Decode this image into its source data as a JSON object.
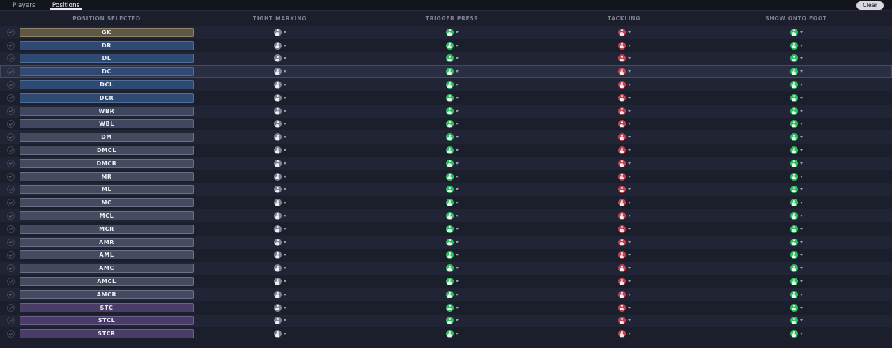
{
  "tabs": [
    {
      "label": "Players",
      "active": false
    },
    {
      "label": "Positions",
      "active": true
    }
  ],
  "clear_label": "Clear",
  "columns": [
    "POSITION SELECTED",
    "TIGHT MARKING",
    "TRIGGER PRESS",
    "TACKLING",
    "SHOW ONTO FOOT"
  ],
  "icons": {
    "row_checkbox": "check-circle",
    "tight_marking": "grey-figure-circle",
    "trigger_press": "green-figure-circle",
    "tackling": "red-figure-circle",
    "show_onto_foot": "green-figure-circle",
    "dropdown": "chevron-down"
  },
  "colors": {
    "page_bg": "#1c1f2b",
    "topbar_bg": "#13151e",
    "row_light": "#202435",
    "row_dark": "#1b1e2b",
    "row_selected": "#2a2e42",
    "gk_bg": "#5e5844",
    "gk_border": "#8d8666",
    "def_bg": "#2e4a72",
    "def_border": "#4f6f9c",
    "wb_bg": "#3f4660",
    "wb_border": "#646c8a",
    "mid_bg": "#454b5f",
    "mid_border": "#6a7188",
    "st_bg": "#493d67",
    "st_border": "#6f6094",
    "tight_marking_icon": "#7d8494",
    "trigger_press_icon": "#2fbd62",
    "tackling_icon": "#c3424f",
    "show_onto_foot_icon": "#2fbd62"
  },
  "rows": [
    {
      "position": "GK",
      "group": "gk",
      "selected": false
    },
    {
      "position": "DR",
      "group": "def",
      "selected": false
    },
    {
      "position": "DL",
      "group": "def",
      "selected": false
    },
    {
      "position": "DC",
      "group": "def",
      "selected": true
    },
    {
      "position": "DCL",
      "group": "def",
      "selected": false
    },
    {
      "position": "DCR",
      "group": "def",
      "selected": false
    },
    {
      "position": "WBR",
      "group": "wb",
      "selected": false
    },
    {
      "position": "WBL",
      "group": "wb",
      "selected": false
    },
    {
      "position": "DM",
      "group": "mid",
      "selected": false
    },
    {
      "position": "DMCL",
      "group": "mid",
      "selected": false
    },
    {
      "position": "DMCR",
      "group": "mid",
      "selected": false
    },
    {
      "position": "MR",
      "group": "mid",
      "selected": false
    },
    {
      "position": "ML",
      "group": "mid",
      "selected": false
    },
    {
      "position": "MC",
      "group": "mid",
      "selected": false
    },
    {
      "position": "MCL",
      "group": "mid",
      "selected": false
    },
    {
      "position": "MCR",
      "group": "mid",
      "selected": false
    },
    {
      "position": "AMR",
      "group": "mid",
      "selected": false
    },
    {
      "position": "AML",
      "group": "mid",
      "selected": false
    },
    {
      "position": "AMC",
      "group": "mid",
      "selected": false
    },
    {
      "position": "AMCL",
      "group": "mid",
      "selected": false
    },
    {
      "position": "AMCR",
      "group": "mid",
      "selected": false
    },
    {
      "position": "STC",
      "group": "st",
      "selected": false
    },
    {
      "position": "STCL",
      "group": "st",
      "selected": false
    },
    {
      "position": "STCR",
      "group": "st",
      "selected": false
    }
  ]
}
